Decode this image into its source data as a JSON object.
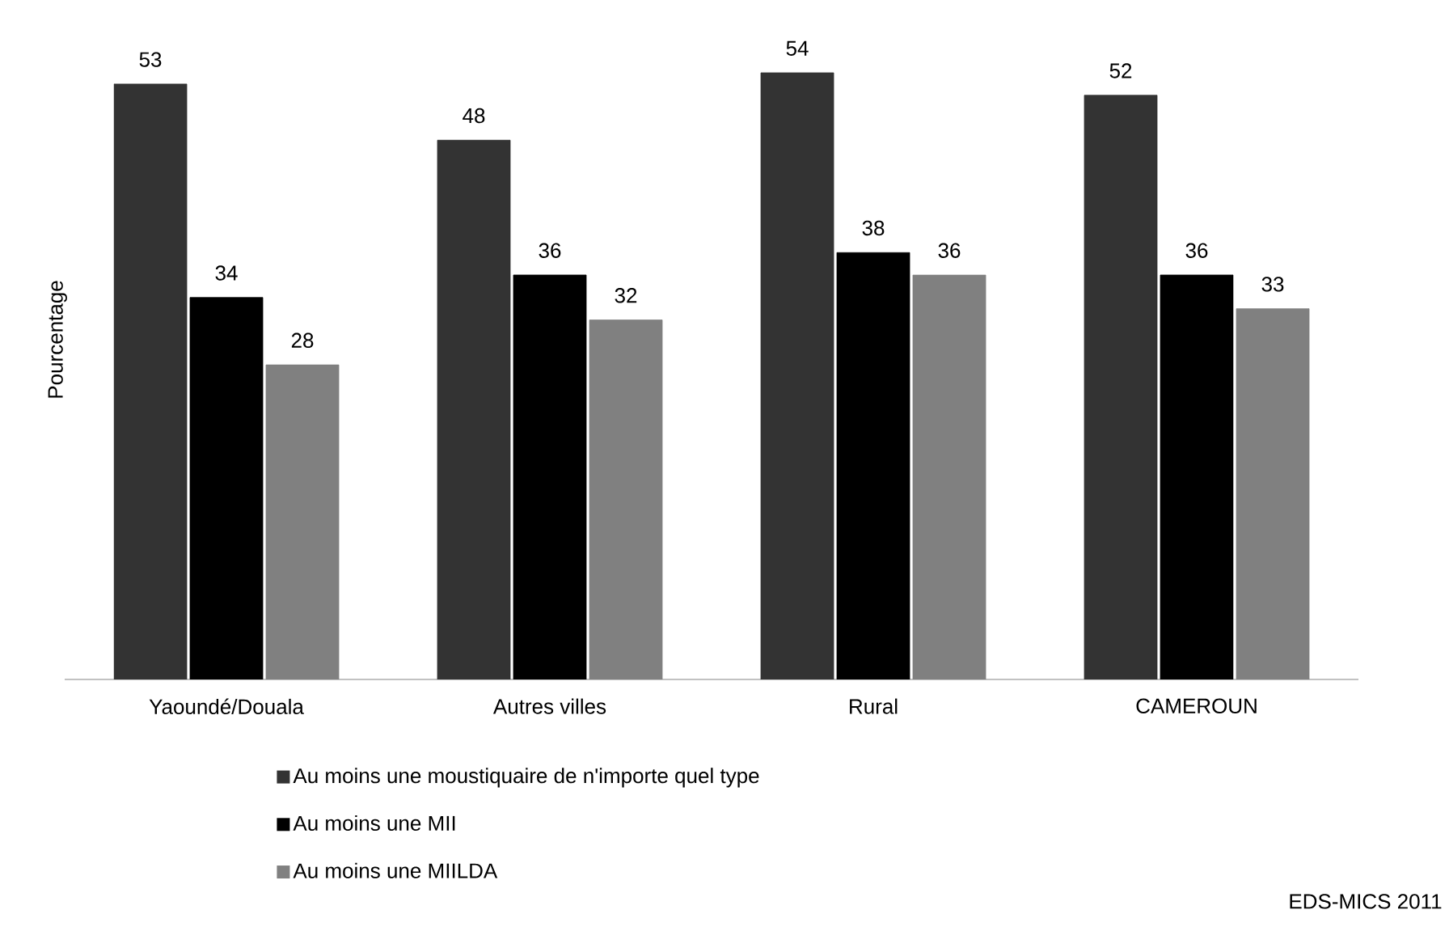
{
  "chart_data": {
    "type": "bar",
    "ylabel": "Pourcentage",
    "categories": [
      "Yaoundé/Douala",
      "Autres villes",
      "Rural",
      "CAMEROUN"
    ],
    "series": [
      {
        "name": "Au moins une moustiquaire de n'importe quel type",
        "color": "#333333",
        "values": [
          53,
          48,
          54,
          52
        ]
      },
      {
        "name": "Au moins une MII",
        "color": "#000000",
        "values": [
          34,
          36,
          38,
          36
        ]
      },
      {
        "name": "Au moins une MIILDA",
        "color": "#808080",
        "values": [
          28,
          32,
          36,
          33
        ]
      }
    ],
    "data_labels": true,
    "legend": "bottom",
    "grid": false,
    "annotations": [
      "EDS-MICS 2011"
    ]
  }
}
